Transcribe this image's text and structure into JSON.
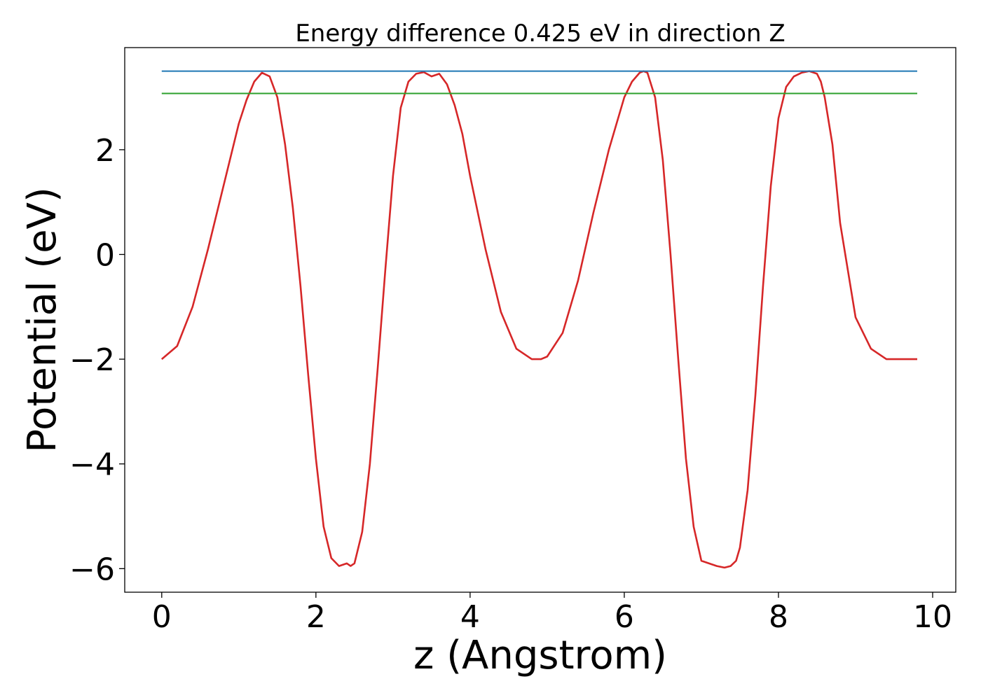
{
  "chart_data": {
    "type": "line",
    "title": "Energy difference 0.425 eV in direction Z",
    "xlabel": "z (Angstrom)",
    "ylabel": "Potential (eV)",
    "xlim": [
      -0.48,
      10.3
    ],
    "ylim": [
      -6.45,
      3.95
    ],
    "x_ticks": [
      0,
      2,
      4,
      6,
      8,
      10
    ],
    "x_tick_labels": [
      "0",
      "2",
      "4",
      "6",
      "8",
      "10"
    ],
    "y_ticks": [
      -6,
      -4,
      -2,
      0,
      2
    ],
    "y_tick_labels": [
      "−6",
      "−4",
      "−2",
      "0",
      "2"
    ],
    "grid": false,
    "legend": "none",
    "series": [
      {
        "color": "#d62728",
        "x": [
          0.0,
          0.2,
          0.4,
          0.6,
          0.8,
          1.0,
          1.1,
          1.2,
          1.3,
          1.4,
          1.5,
          1.6,
          1.7,
          1.8,
          1.9,
          2.0,
          2.1,
          2.2,
          2.3,
          2.4,
          2.45,
          2.5,
          2.6,
          2.7,
          2.8,
          2.9,
          3.0,
          3.1,
          3.2,
          3.3,
          3.4,
          3.5,
          3.6,
          3.7,
          3.8,
          3.9,
          4.0,
          4.2,
          4.4,
          4.6,
          4.8,
          4.92,
          5.0,
          5.2,
          5.4,
          5.6,
          5.8,
          6.0,
          6.1,
          6.2,
          6.25,
          6.3,
          6.4,
          6.5,
          6.6,
          6.7,
          6.8,
          6.9,
          7.0,
          7.1,
          7.2,
          7.3,
          7.38,
          7.45,
          7.5,
          7.6,
          7.7,
          7.8,
          7.9,
          8.0,
          8.1,
          8.2,
          8.3,
          8.4,
          8.5,
          8.55,
          8.6,
          8.7,
          8.8,
          9.0,
          9.2,
          9.4,
          9.6,
          9.8
        ],
        "y": [
          -2.0,
          -1.75,
          -1.0,
          0.1,
          1.3,
          2.5,
          2.95,
          3.3,
          3.47,
          3.4,
          3.0,
          2.1,
          0.9,
          -0.6,
          -2.3,
          -3.9,
          -5.2,
          -5.8,
          -5.95,
          -5.9,
          -5.95,
          -5.9,
          -5.3,
          -4.0,
          -2.2,
          -0.3,
          1.5,
          2.8,
          3.3,
          3.45,
          3.48,
          3.4,
          3.45,
          3.25,
          2.85,
          2.3,
          1.5,
          0.1,
          -1.1,
          -1.8,
          -2.0,
          -2.0,
          -1.95,
          -1.5,
          -0.5,
          0.8,
          2.0,
          3.0,
          3.3,
          3.47,
          3.5,
          3.47,
          3.0,
          1.8,
          0.0,
          -2.0,
          -3.9,
          -5.2,
          -5.85,
          -5.9,
          -5.95,
          -5.98,
          -5.95,
          -5.85,
          -5.6,
          -4.5,
          -2.7,
          -0.6,
          1.3,
          2.6,
          3.2,
          3.4,
          3.47,
          3.5,
          3.45,
          3.3,
          3.0,
          2.1,
          0.6,
          -1.2,
          -1.8,
          -2.0,
          -2.0,
          -2.0
        ]
      },
      {
        "color": "#1f77b4",
        "x": [
          0.0,
          9.8
        ],
        "y": [
          3.5,
          3.5
        ]
      },
      {
        "color": "#2ca02c",
        "x": [
          0.0,
          9.8
        ],
        "y": [
          3.075,
          3.075
        ]
      }
    ]
  }
}
